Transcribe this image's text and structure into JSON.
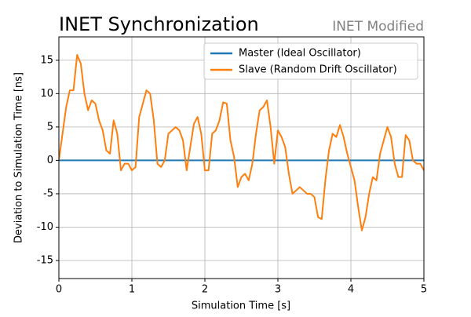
{
  "chart_data": {
    "type": "line",
    "title": "INET Synchronization",
    "subtitle": "INET Modified",
    "x_label": "Simulation Time [s]",
    "y_label": "Deviation to Simulation Time [ns]",
    "xlim": [
      0,
      5
    ],
    "ylim": [
      -17.7,
      18.5
    ],
    "xticks": [
      0,
      1,
      2,
      3,
      4,
      5
    ],
    "yticks": [
      -15,
      -10,
      -5,
      0,
      5,
      10,
      15
    ],
    "grid": true,
    "legend": "upper right",
    "series": [
      {
        "name": "Master (Ideal Oscillator)",
        "color": "#1f77b4",
        "x": [
          0,
          5
        ],
        "values": [
          0,
          0
        ]
      },
      {
        "name": "Slave (Random Drift Oscillator)",
        "color": "#ff7f0e",
        "x": [
          0,
          0.05,
          0.1,
          0.15,
          0.2,
          0.25,
          0.3,
          0.35,
          0.4,
          0.45,
          0.5,
          0.55,
          0.6,
          0.65,
          0.7,
          0.75,
          0.8,
          0.85,
          0.9,
          0.95,
          1,
          1.05,
          1.1,
          1.15,
          1.2,
          1.25,
          1.3,
          1.35,
          1.4,
          1.45,
          1.5,
          1.55,
          1.6,
          1.65,
          1.7,
          1.75,
          1.8,
          1.85,
          1.9,
          1.95,
          2,
          2.05,
          2.1,
          2.15,
          2.2,
          2.25,
          2.3,
          2.35,
          2.4,
          2.45,
          2.5,
          2.55,
          2.6,
          2.65,
          2.7,
          2.75,
          2.8,
          2.85,
          2.9,
          2.95,
          3,
          3.05,
          3.1,
          3.15,
          3.2,
          3.25,
          3.3,
          3.35,
          3.4,
          3.45,
          3.5,
          3.55,
          3.6,
          3.65,
          3.7,
          3.75,
          3.8,
          3.85,
          3.9,
          3.95,
          4,
          4.05,
          4.1,
          4.15,
          4.2,
          4.25,
          4.3,
          4.35,
          4.4,
          4.45,
          4.5,
          4.55,
          4.6,
          4.65,
          4.7,
          4.75,
          4.8,
          4.85,
          4.9,
          4.95,
          5
        ],
        "values": [
          0,
          4,
          8,
          10.5,
          10.5,
          15.8,
          14.5,
          10,
          7.5,
          9,
          8.5,
          6,
          4.5,
          1.5,
          1,
          6,
          4,
          -1.5,
          -0.5,
          -0.5,
          -1.5,
          -1,
          6.5,
          8.5,
          10.5,
          10,
          6,
          -0.5,
          -1,
          0,
          4,
          4.5,
          5,
          4.5,
          3,
          -1.5,
          2,
          5.5,
          6.5,
          4,
          -1.5,
          -1.5,
          4,
          4.5,
          6,
          8.7,
          8.5,
          3,
          0.5,
          -4,
          -2.5,
          -2,
          -3,
          -0.5,
          4,
          7.5,
          8,
          9,
          5,
          -0.5,
          4.5,
          3.5,
          2,
          -2,
          -5,
          -4.5,
          -4,
          -4.5,
          -5,
          -5,
          -5.5,
          -8.5,
          -8.8,
          -3,
          1.5,
          4,
          3.5,
          5.3,
          3.5,
          1,
          -1,
          -3,
          -7,
          -10.5,
          -8.5,
          -5,
          -2.5,
          -3,
          1,
          3,
          5,
          3.5,
          -0.5,
          -2.5,
          -2.5,
          3.8,
          3,
          0,
          -0.5,
          -0.5,
          -1.5
        ]
      }
    ]
  }
}
